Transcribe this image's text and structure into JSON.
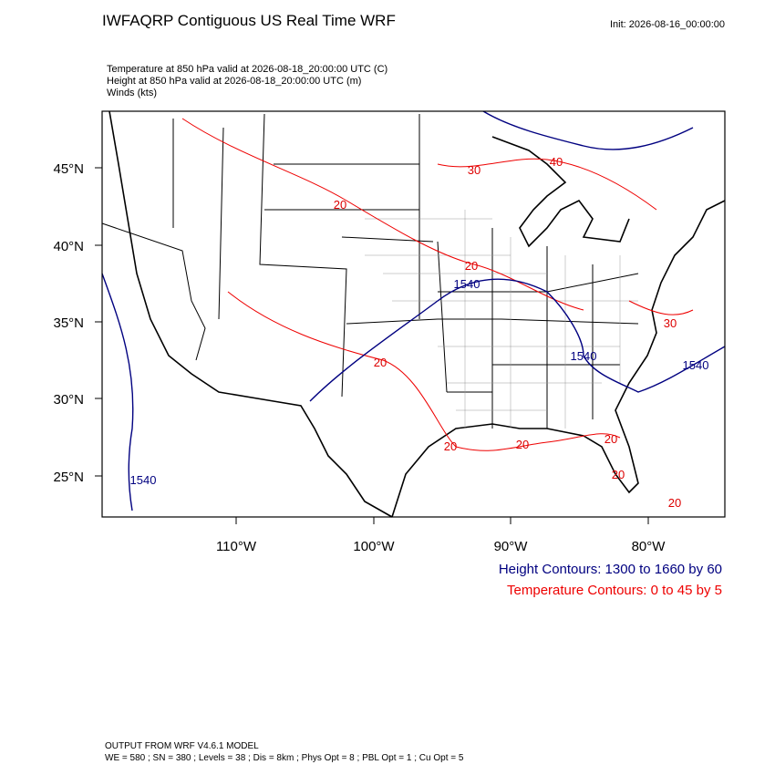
{
  "header": {
    "title": "IWFAQRP Contiguous US Real Time WRF",
    "init": "Init: 2026-08-16_00:00:00"
  },
  "fields": [
    "Temperature at 850 hPa valid at 2026-08-18_20:00:00 UTC   (C)",
    "Height at 850 hPa valid at 2026-08-18_20:00:00 UTC   (m)",
    "Winds   (kts)"
  ],
  "map": {
    "lat_labels": [
      "45°N",
      "40°N",
      "35°N",
      "30°N",
      "25°N"
    ],
    "lon_labels": [
      "110°W",
      "100°W",
      "90°W",
      "80°W"
    ],
    "temperature_labels": [
      "20",
      "20",
      "20",
      "20",
      "20",
      "20",
      "20",
      "20",
      "30",
      "40",
      "30"
    ],
    "height_labels": [
      "1540",
      "1540",
      "1540",
      "1540"
    ]
  },
  "legend": {
    "height": "Height Contours: 1300 to 1660 by 60",
    "temperature": "Temperature Contours: 0 to 45 by 5"
  },
  "footer": [
    "OUTPUT FROM WRF V4.6.1 MODEL",
    "WE = 580 ; SN = 380 ; Levels = 38 ; Dis = 8km ; Phys Opt = 8 ; PBL Opt = 1 ; Cu Opt = 5"
  ]
}
